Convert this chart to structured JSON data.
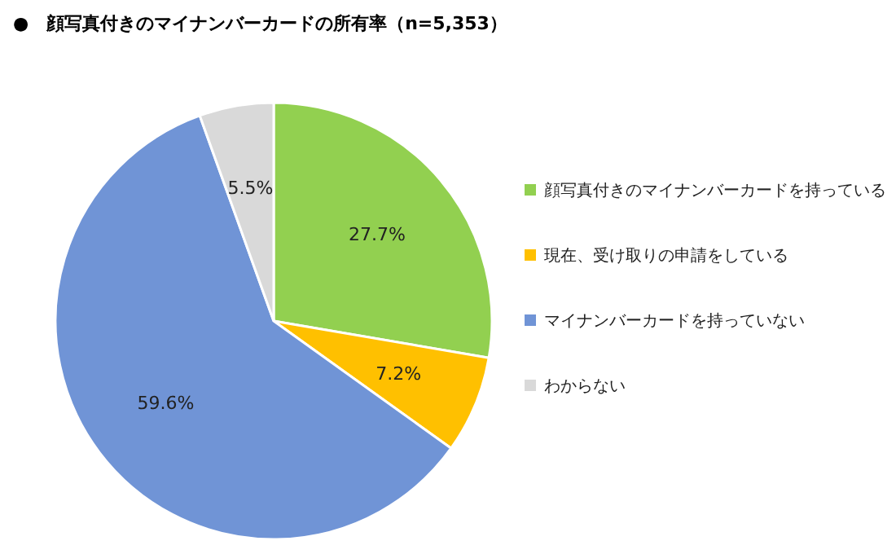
{
  "chart_data": {
    "type": "pie",
    "title": "●　顔写真付きのマイナンバーカードの所有率（n=5,353）",
    "categories": [
      "顔写真付きのマイナンバーカードを持っている",
      "現在、受け取りの申請をしている",
      "マイナンバーカードを持っていない",
      "わからない"
    ],
    "values": [
      27.7,
      7.2,
      59.6,
      5.5
    ],
    "colors": [
      "#92d050",
      "#ffc000",
      "#7094d6",
      "#d9d9d9"
    ],
    "value_labels": [
      "27.7%",
      "7.2%",
      "59.6%",
      "5.5%"
    ],
    "legend": "right"
  }
}
